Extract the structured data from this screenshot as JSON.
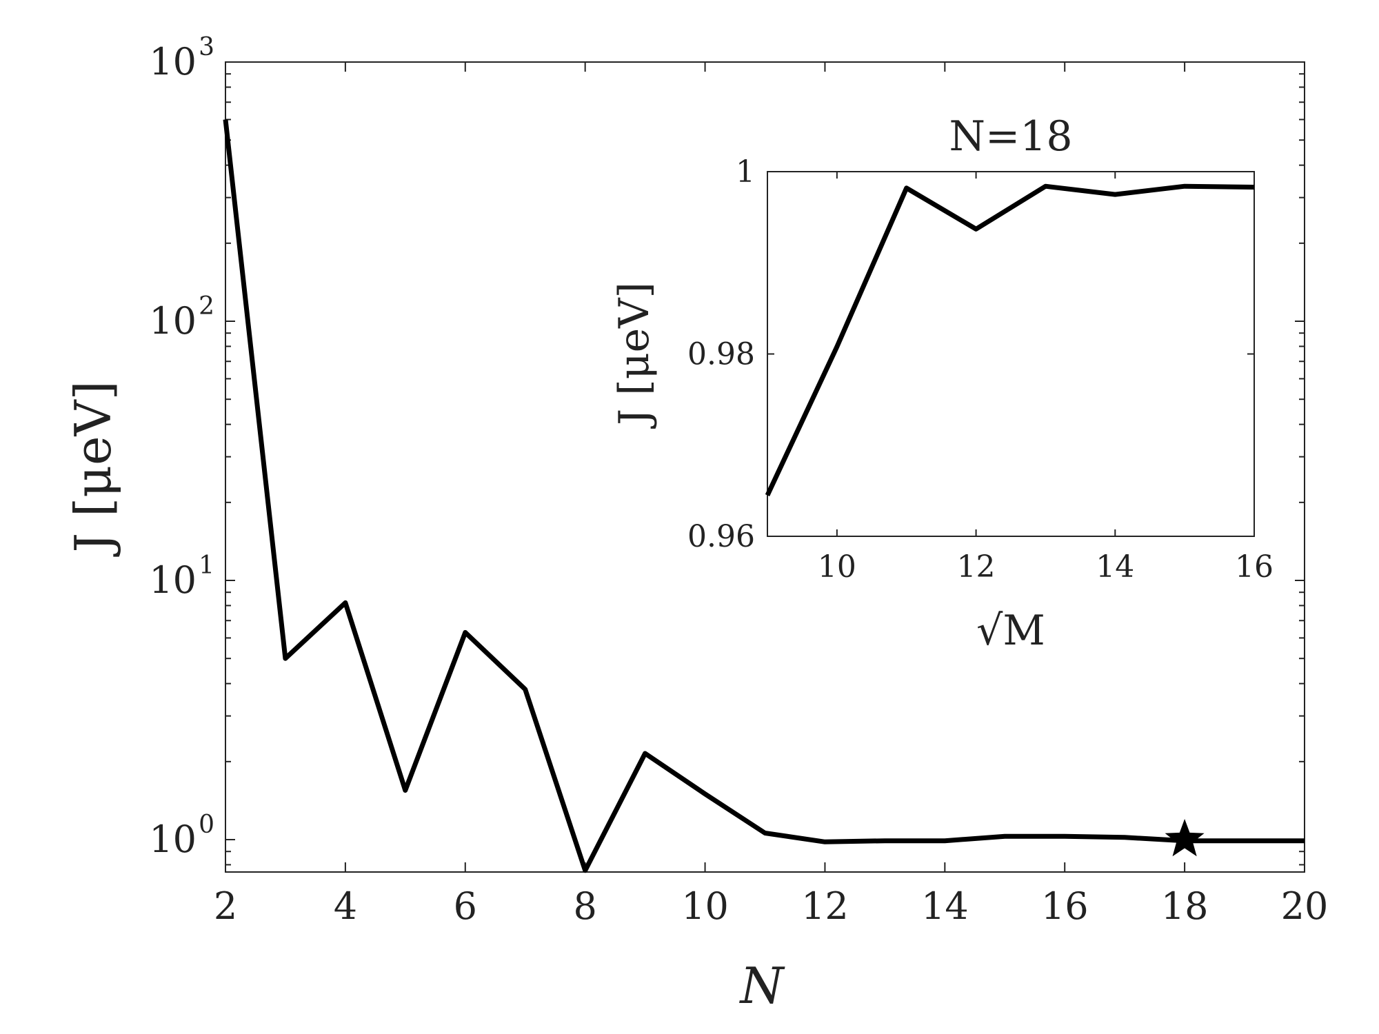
{
  "chart_data": [
    {
      "type": "line",
      "xlabel": "N",
      "ylabel": "J [μeV]",
      "yscale": "log",
      "xlim": [
        2,
        20
      ],
      "ylim": [
        0.75,
        1000
      ],
      "x_ticks": [
        2,
        4,
        6,
        8,
        10,
        12,
        14,
        16,
        18,
        20
      ],
      "x_tick_labels": [
        "2",
        "4",
        "6",
        "8",
        "10",
        "12",
        "14",
        "16",
        "18",
        "20"
      ],
      "y_ticks": [
        1,
        10,
        100,
        1000
      ],
      "y_tick_labels": [
        {
          "base": "10",
          "exp": "0"
        },
        {
          "base": "10",
          "exp": "1"
        },
        {
          "base": "10",
          "exp": "2"
        },
        {
          "base": "10",
          "exp": "3"
        }
      ],
      "grid": false,
      "color": "#000000",
      "series": [
        {
          "x": [
            2,
            3,
            4,
            5,
            6,
            7,
            8,
            9,
            10,
            11,
            12,
            13,
            14,
            15,
            16,
            17,
            18,
            19,
            20
          ],
          "y": [
            600,
            5.0,
            8.2,
            1.55,
            6.3,
            3.8,
            0.76,
            2.15,
            1.5,
            1.06,
            0.98,
            0.99,
            0.99,
            1.03,
            1.03,
            1.02,
            0.99,
            0.99,
            0.99
          ]
        }
      ],
      "marker": {
        "x": 18,
        "y": 1.0,
        "shape": "star"
      }
    },
    {
      "type": "line",
      "inset": true,
      "title": "N=18",
      "xlabel": "√M",
      "ylabel": "J [μeV]",
      "xlim": [
        9,
        16
      ],
      "ylim": [
        0.96,
        1.0
      ],
      "x_ticks": [
        10,
        12,
        14,
        16
      ],
      "x_tick_labels": [
        "10",
        "12",
        "14",
        "16"
      ],
      "y_ticks": [
        0.96,
        0.98,
        1.0
      ],
      "y_tick_labels": [
        "0.96",
        "0.98",
        "1"
      ],
      "grid": false,
      "color": "#000000",
      "series": [
        {
          "x": [
            9,
            10,
            11,
            12,
            13,
            14,
            15,
            16
          ],
          "y": [
            0.9645,
            0.9808,
            0.9982,
            0.9937,
            0.9984,
            0.9975,
            0.9984,
            0.9983
          ]
        }
      ]
    }
  ]
}
